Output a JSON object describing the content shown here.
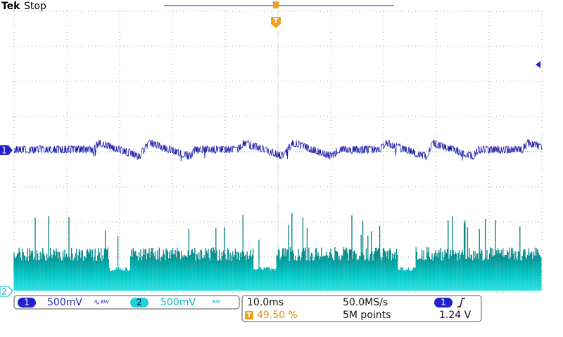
{
  "header": {
    "brand": "Tek",
    "status": "Stop"
  },
  "trigger_marker": "T",
  "bandwidth_mark": "BW",
  "channels": [
    {
      "number": "1",
      "scale": "500mV"
    },
    {
      "number": "2",
      "scale": "500mV"
    }
  ],
  "timebase": {
    "scale": "10.0ms",
    "sample_rate": "50.0MS/s",
    "trigger_position": "49.50 %",
    "record_length": "5M points"
  },
  "trigger": {
    "source": "1",
    "level": "1.24 V"
  }
}
